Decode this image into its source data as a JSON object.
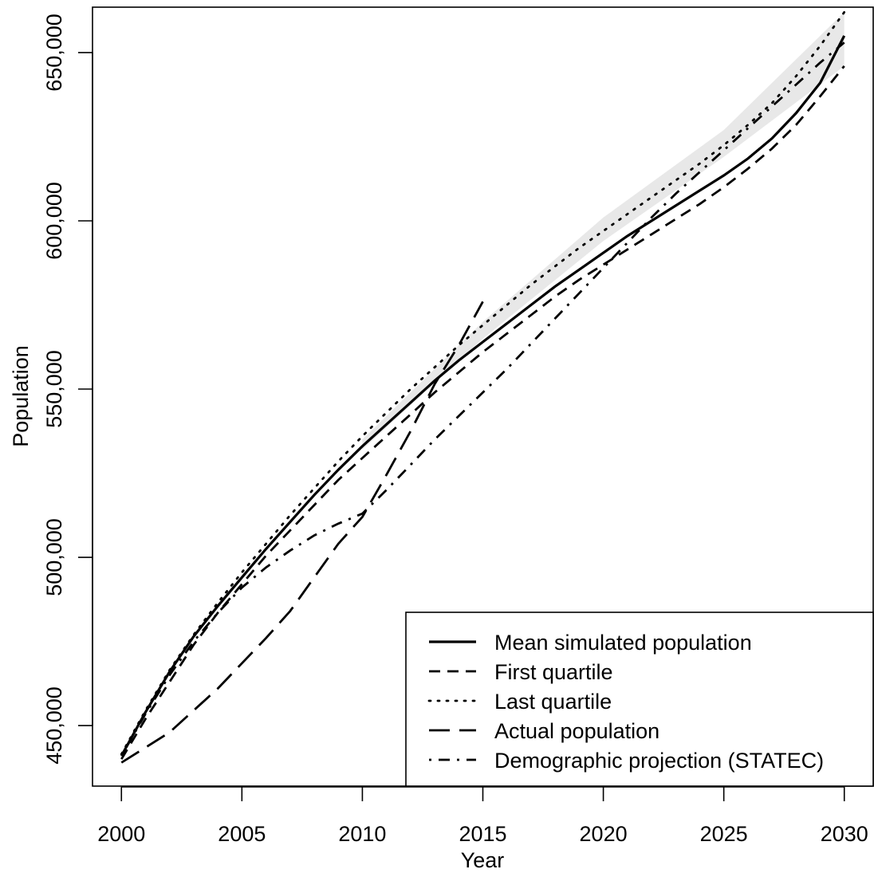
{
  "chart_data": {
    "type": "line",
    "title": "",
    "xlabel": "Year",
    "ylabel": "Population",
    "xlim": [
      1998.8,
      2031.2
    ],
    "ylim": [
      432000,
      663500
    ],
    "x_ticks": [
      2000,
      2005,
      2010,
      2015,
      2020,
      2025,
      2030
    ],
    "x_tick_labels": [
      "2000",
      "2005",
      "2010",
      "2015",
      "2020",
      "2025",
      "2030"
    ],
    "y_ticks": [
      450000,
      500000,
      550000,
      600000,
      650000
    ],
    "y_tick_labels": [
      "450,000",
      "500,000",
      "550,000",
      "600,000",
      "650,000"
    ],
    "grid": false,
    "legend_position": "bottom-right",
    "band": {
      "fill": "#e8e8e8",
      "x": [
        2010,
        2015,
        2020,
        2025,
        2030
      ],
      "lower": [
        532000,
        565000,
        594000,
        619000,
        646000
      ],
      "upper": [
        535000,
        570000,
        601000,
        627000,
        662000
      ]
    },
    "series": [
      {
        "name": "Mean simulated population",
        "dash": "solid",
        "x": [
          2000,
          2001,
          2002,
          2003,
          2004,
          2005,
          2006,
          2007,
          2008,
          2009,
          2010,
          2011,
          2012,
          2013,
          2014,
          2015,
          2016,
          2017,
          2018,
          2019,
          2020,
          2021,
          2022,
          2023,
          2024,
          2025,
          2026,
          2027,
          2028,
          2029,
          2030
        ],
        "values": [
          441000,
          454000,
          466000,
          476500,
          485500,
          494000,
          502500,
          510500,
          518500,
          526000,
          533000,
          539500,
          546000,
          552500,
          558500,
          564000,
          569500,
          575000,
          580500,
          585500,
          590500,
          595500,
          600000,
          604500,
          609000,
          613500,
          618500,
          624500,
          632000,
          641000,
          655000
        ]
      },
      {
        "name": "First quartile",
        "dash": "short-dash",
        "x": [
          2000,
          2001,
          2002,
          2003,
          2004,
          2005,
          2006,
          2007,
          2008,
          2009,
          2010,
          2011,
          2012,
          2013,
          2014,
          2015,
          2016,
          2017,
          2018,
          2019,
          2020,
          2021,
          2022,
          2023,
          2024,
          2025,
          2026,
          2027,
          2028,
          2029,
          2030
        ],
        "values": [
          440000,
          452000,
          463000,
          474000,
          483500,
          492000,
          500500,
          508000,
          515500,
          523000,
          529500,
          536000,
          542500,
          549000,
          555000,
          561000,
          566500,
          572000,
          577500,
          582500,
          587000,
          591500,
          596000,
          600500,
          605000,
          610000,
          615500,
          621500,
          628500,
          637000,
          646000
        ]
      },
      {
        "name": "Last quartile",
        "dash": "dotted",
        "x": [
          2000,
          2001,
          2002,
          2003,
          2004,
          2005,
          2006,
          2007,
          2008,
          2009,
          2010,
          2011,
          2012,
          2013,
          2014,
          2015,
          2016,
          2017,
          2018,
          2019,
          2020,
          2021,
          2022,
          2023,
          2024,
          2025,
          2026,
          2027,
          2028,
          2029,
          2030
        ],
        "values": [
          441500,
          454500,
          466500,
          477000,
          486500,
          495500,
          504000,
          512500,
          520500,
          528500,
          536000,
          543000,
          550000,
          556500,
          563000,
          569000,
          575000,
          581000,
          586500,
          592000,
          597000,
          602000,
          607000,
          612000,
          617000,
          622500,
          628500,
          635000,
          643000,
          652000,
          662000
        ]
      },
      {
        "name": "Actual population",
        "dash": "long-dash",
        "x": [
          2000,
          2002,
          2004,
          2006,
          2007,
          2008,
          2009,
          2010,
          2011,
          2012,
          2013,
          2014,
          2015
        ],
        "values": [
          439000,
          448000,
          461000,
          476000,
          484000,
          494000,
          504000,
          512000,
          524500,
          537500,
          551500,
          563000,
          576000
        ]
      },
      {
        "name": "Demographic projection (STATEC)",
        "dash": "dot-dash",
        "x": [
          2000,
          2001,
          2002,
          2003,
          2004,
          2005,
          2006,
          2007,
          2008,
          2009,
          2010,
          2011,
          2012,
          2013,
          2014,
          2015,
          2016,
          2017,
          2018,
          2019,
          2020,
          2021,
          2022,
          2023,
          2024,
          2025,
          2026,
          2027,
          2028,
          2029,
          2030
        ],
        "values": [
          441000,
          453500,
          465000,
          475000,
          483500,
          491000,
          497000,
          502000,
          506500,
          510000,
          513000,
          520000,
          527500,
          535000,
          542000,
          549000,
          556000,
          563500,
          571000,
          578500,
          586000,
          593500,
          601000,
          608000,
          614500,
          621000,
          627500,
          634000,
          640500,
          647000,
          653000
        ]
      }
    ]
  }
}
